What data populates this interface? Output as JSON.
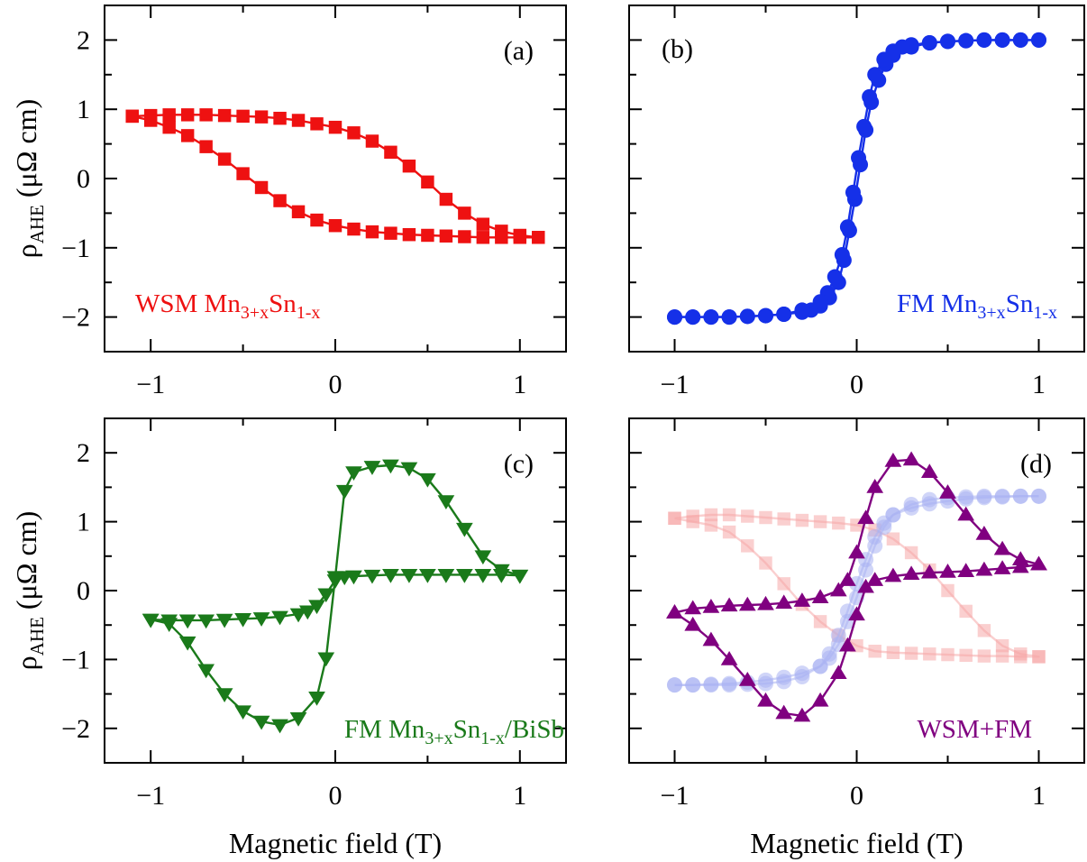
{
  "chart_data": [
    {
      "type": "line",
      "panel_label": "(a)",
      "annotation": {
        "main": "WSM Mn",
        "sub1": "3+x",
        "mid": "Sn",
        "sub2": "1-x",
        "tail": ""
      },
      "color": "#ee1111",
      "marker": "square",
      "ylabel": "ρ",
      "ylabel_sub": "AHE",
      "ylabel_units": " (μΩ cm)",
      "xlabel": "",
      "xlim": [
        -1.25,
        1.25
      ],
      "ylim": [
        -2.5,
        2.5
      ],
      "xticks": [
        "−1",
        "0",
        "1"
      ],
      "yticks": [
        "2",
        "1",
        "0",
        "−1",
        "−2"
      ],
      "series": [
        {
          "x": [
            -1.1,
            -1.0,
            -0.9,
            -0.8,
            -0.7,
            -0.6,
            -0.5,
            -0.4,
            -0.3,
            -0.2,
            -0.1,
            0.0,
            0.1,
            0.2,
            0.3,
            0.4,
            0.5,
            0.6,
            0.7,
            0.8,
            0.9,
            1.0,
            1.1
          ],
          "y": [
            0.9,
            0.91,
            0.92,
            0.92,
            0.92,
            0.91,
            0.9,
            0.89,
            0.87,
            0.84,
            0.79,
            0.74,
            0.66,
            0.54,
            0.38,
            0.18,
            -0.05,
            -0.3,
            -0.5,
            -0.66,
            -0.76,
            -0.82,
            -0.85
          ]
        },
        {
          "x": [
            1.1,
            1.0,
            0.9,
            0.8,
            0.7,
            0.6,
            0.5,
            0.4,
            0.3,
            0.2,
            0.1,
            0.0,
            -0.1,
            -0.2,
            -0.3,
            -0.4,
            -0.5,
            -0.6,
            -0.7,
            -0.8,
            -0.9,
            -1.0,
            -1.1
          ],
          "y": [
            -0.85,
            -0.85,
            -0.85,
            -0.85,
            -0.84,
            -0.83,
            -0.82,
            -0.81,
            -0.79,
            -0.77,
            -0.73,
            -0.68,
            -0.6,
            -0.48,
            -0.32,
            -0.13,
            0.07,
            0.28,
            0.46,
            0.62,
            0.74,
            0.84,
            0.9
          ]
        }
      ]
    },
    {
      "type": "line",
      "panel_label": "(b)",
      "annotation": {
        "main": "FM Mn",
        "sub1": "3+x",
        "mid": "Sn",
        "sub2": "1-x",
        "tail": ""
      },
      "color": "#1530e8",
      "marker": "circle",
      "ylabel": "",
      "xlabel": "",
      "xlim": [
        -1.25,
        1.25
      ],
      "ylim": [
        -2.5,
        2.5
      ],
      "xticks": [
        "−1",
        "0",
        "1"
      ],
      "yticks": [],
      "series": [
        {
          "x": [
            -1.0,
            -0.9,
            -0.8,
            -0.7,
            -0.6,
            -0.5,
            -0.4,
            -0.3,
            -0.25,
            -0.2,
            -0.15,
            -0.1,
            -0.07,
            -0.04,
            -0.01,
            0.02,
            0.05,
            0.08,
            0.12,
            0.16,
            0.2,
            0.3,
            0.4,
            0.5,
            0.6,
            0.7,
            0.8,
            0.9,
            1.0
          ],
          "y": [
            -2.0,
            -2.0,
            -2.0,
            -2.0,
            -1.99,
            -1.98,
            -1.96,
            -1.93,
            -1.9,
            -1.84,
            -1.72,
            -1.5,
            -1.18,
            -0.75,
            -0.3,
            0.2,
            0.7,
            1.1,
            1.42,
            1.65,
            1.78,
            1.9,
            1.96,
            1.98,
            1.99,
            2.0,
            2.0,
            2.0,
            2.0
          ]
        },
        {
          "x": [
            1.0,
            0.9,
            0.8,
            0.7,
            0.6,
            0.5,
            0.4,
            0.3,
            0.25,
            0.2,
            0.15,
            0.1,
            0.07,
            0.04,
            0.01,
            -0.02,
            -0.05,
            -0.08,
            -0.12,
            -0.16,
            -0.2,
            -0.3,
            -0.4,
            -0.5,
            -0.6,
            -0.7,
            -0.8,
            -0.9,
            -1.0
          ],
          "y": [
            2.0,
            2.0,
            2.0,
            2.0,
            1.99,
            1.98,
            1.96,
            1.93,
            1.9,
            1.84,
            1.72,
            1.5,
            1.18,
            0.75,
            0.3,
            -0.2,
            -0.7,
            -1.1,
            -1.42,
            -1.65,
            -1.78,
            -1.9,
            -1.96,
            -1.98,
            -1.99,
            -2.0,
            -2.0,
            -2.0,
            -2.0
          ]
        }
      ]
    },
    {
      "type": "line",
      "panel_label": "(c)",
      "annotation": {
        "main": "FM Mn",
        "sub1": "3+x",
        "mid": "Sn",
        "sub2": "1-x",
        "tail": "/BiSb"
      },
      "color": "#1a7a1a",
      "marker": "triangle-down",
      "ylabel": "ρ",
      "ylabel_sub": "AHE",
      "ylabel_units": " (μΩ cm)",
      "xlabel": "Magnetic field (T)",
      "xlim": [
        -1.25,
        1.25
      ],
      "ylim": [
        -2.5,
        2.5
      ],
      "xticks": [
        "−1",
        "0",
        "1"
      ],
      "yticks": [
        "2",
        "1",
        "0",
        "−1",
        "−2"
      ],
      "series": [
        {
          "x": [
            -1.0,
            -0.9,
            -0.8,
            -0.7,
            -0.6,
            -0.5,
            -0.4,
            -0.3,
            -0.2,
            -0.15,
            -0.1,
            -0.05,
            0.0,
            0.05,
            0.1,
            0.2,
            0.3,
            0.4,
            0.5,
            0.6,
            0.7,
            0.8,
            0.9,
            1.0
          ],
          "y": [
            -0.42,
            -0.43,
            -0.43,
            -0.43,
            -0.42,
            -0.41,
            -0.4,
            -0.38,
            -0.34,
            -0.3,
            -0.22,
            -0.05,
            0.15,
            0.2,
            0.21,
            0.22,
            0.23,
            0.23,
            0.23,
            0.23,
            0.23,
            0.23,
            0.23,
            0.22
          ]
        },
        {
          "x": [
            1.0,
            0.9,
            0.8,
            0.7,
            0.6,
            0.5,
            0.4,
            0.3,
            0.2,
            0.1,
            0.05,
            0.0,
            -0.05,
            -0.1,
            -0.2,
            -0.3,
            -0.4,
            -0.5,
            -0.6,
            -0.7,
            -0.8,
            -0.9,
            -1.0
          ],
          "y": [
            0.22,
            0.3,
            0.5,
            0.9,
            1.3,
            1.62,
            1.78,
            1.82,
            1.8,
            1.72,
            1.45,
            0.2,
            -0.98,
            -1.55,
            -1.85,
            -1.95,
            -1.9,
            -1.75,
            -1.5,
            -1.15,
            -0.75,
            -0.48,
            -0.42
          ]
        }
      ]
    },
    {
      "type": "line",
      "panel_label": "(d)",
      "annotation": {
        "main": "WSM+FM",
        "sub1": "",
        "mid": "",
        "sub2": "",
        "tail": ""
      },
      "color": "#800080",
      "marker": "triangle-up",
      "ylabel": "",
      "xlabel": "Magnetic field (T)",
      "xlim": [
        -1.25,
        1.25
      ],
      "ylim": [
        -2.5,
        2.5
      ],
      "xticks": [
        "−1",
        "0",
        "1"
      ],
      "yticks": [],
      "background_series": [
        {
          "color": "#f6a7a7",
          "marker": "square",
          "x": [
            -1.0,
            -0.9,
            -0.8,
            -0.7,
            -0.6,
            -0.5,
            -0.4,
            -0.3,
            -0.2,
            -0.1,
            0.0,
            0.1,
            0.2,
            0.3,
            0.4,
            0.5,
            0.6,
            0.7,
            0.8,
            0.9,
            1.0,
            1.0,
            0.9,
            0.8,
            0.7,
            0.6,
            0.5,
            0.4,
            0.3,
            0.2,
            0.1,
            0.0,
            -0.1,
            -0.2,
            -0.3,
            -0.4,
            -0.5,
            -0.6,
            -0.7,
            -0.8,
            -0.9,
            -1.0
          ],
          "y": [
            1.05,
            1.08,
            1.1,
            1.1,
            1.08,
            1.06,
            1.04,
            1.02,
            1.0,
            0.98,
            0.95,
            0.88,
            0.75,
            0.55,
            0.3,
            0.0,
            -0.3,
            -0.58,
            -0.8,
            -0.92,
            -0.96,
            -0.96,
            -0.96,
            -0.95,
            -0.95,
            -0.94,
            -0.93,
            -0.92,
            -0.91,
            -0.9,
            -0.88,
            -0.8,
            -0.65,
            -0.45,
            -0.2,
            0.1,
            0.4,
            0.65,
            0.85,
            0.95,
            1.0,
            1.05
          ]
        },
        {
          "color": "#a9b3f3",
          "marker": "circle",
          "x": [
            -1.0,
            -0.9,
            -0.8,
            -0.7,
            -0.6,
            -0.5,
            -0.4,
            -0.3,
            -0.2,
            -0.15,
            -0.1,
            -0.05,
            0.0,
            0.05,
            0.1,
            0.15,
            0.2,
            0.3,
            0.4,
            0.5,
            0.6,
            0.7,
            0.8,
            0.9,
            1.0
          ],
          "y": [
            -1.37,
            -1.37,
            -1.36,
            -1.35,
            -1.33,
            -1.3,
            -1.26,
            -1.2,
            -1.1,
            -0.98,
            -0.78,
            -0.45,
            -0.1,
            0.3,
            0.65,
            0.92,
            1.1,
            1.25,
            1.32,
            1.35,
            1.36,
            1.37,
            1.37,
            1.37,
            1.37
          ]
        },
        {
          "color": "#a9b3f3",
          "marker": "circle",
          "x": [
            1.0,
            0.9,
            0.8,
            0.7,
            0.6,
            0.5,
            0.4,
            0.3,
            0.2,
            0.15,
            0.1,
            0.05,
            0.0,
            -0.05,
            -0.1,
            -0.15,
            -0.2,
            -0.3,
            -0.4,
            -0.5,
            -0.6,
            -0.7,
            -0.8,
            -0.9,
            -1.0
          ],
          "y": [
            1.37,
            1.37,
            1.36,
            1.35,
            1.33,
            1.3,
            1.26,
            1.2,
            1.1,
            0.98,
            0.78,
            0.45,
            0.1,
            -0.3,
            -0.65,
            -0.92,
            -1.1,
            -1.25,
            -1.32,
            -1.35,
            -1.36,
            -1.37,
            -1.37,
            -1.37,
            -1.37
          ]
        }
      ],
      "series": [
        {
          "x": [
            -1.0,
            -0.9,
            -0.8,
            -0.7,
            -0.6,
            -0.5,
            -0.4,
            -0.3,
            -0.2,
            -0.1,
            -0.05,
            0.0,
            0.05,
            0.1,
            0.2,
            0.3,
            0.4,
            0.5,
            0.6,
            0.7,
            0.8,
            0.9,
            1.0
          ],
          "y": [
            -0.32,
            -0.26,
            -0.24,
            -0.22,
            -0.21,
            -0.2,
            -0.18,
            -0.15,
            -0.1,
            0.0,
            0.15,
            0.55,
            1.05,
            1.5,
            1.88,
            1.9,
            1.72,
            1.42,
            1.1,
            0.82,
            0.6,
            0.45,
            0.38
          ]
        },
        {
          "x": [
            1.0,
            0.9,
            0.8,
            0.7,
            0.6,
            0.5,
            0.4,
            0.3,
            0.2,
            0.1,
            0.05,
            0.0,
            -0.05,
            -0.1,
            -0.2,
            -0.3,
            -0.4,
            -0.5,
            -0.6,
            -0.7,
            -0.8,
            -0.9,
            -1.0
          ],
          "y": [
            0.38,
            0.34,
            0.32,
            0.3,
            0.28,
            0.27,
            0.26,
            0.24,
            0.21,
            0.15,
            0.05,
            -0.35,
            -0.8,
            -1.2,
            -1.6,
            -1.82,
            -1.78,
            -1.6,
            -1.3,
            -1.0,
            -0.72,
            -0.5,
            -0.32
          ]
        }
      ]
    }
  ]
}
